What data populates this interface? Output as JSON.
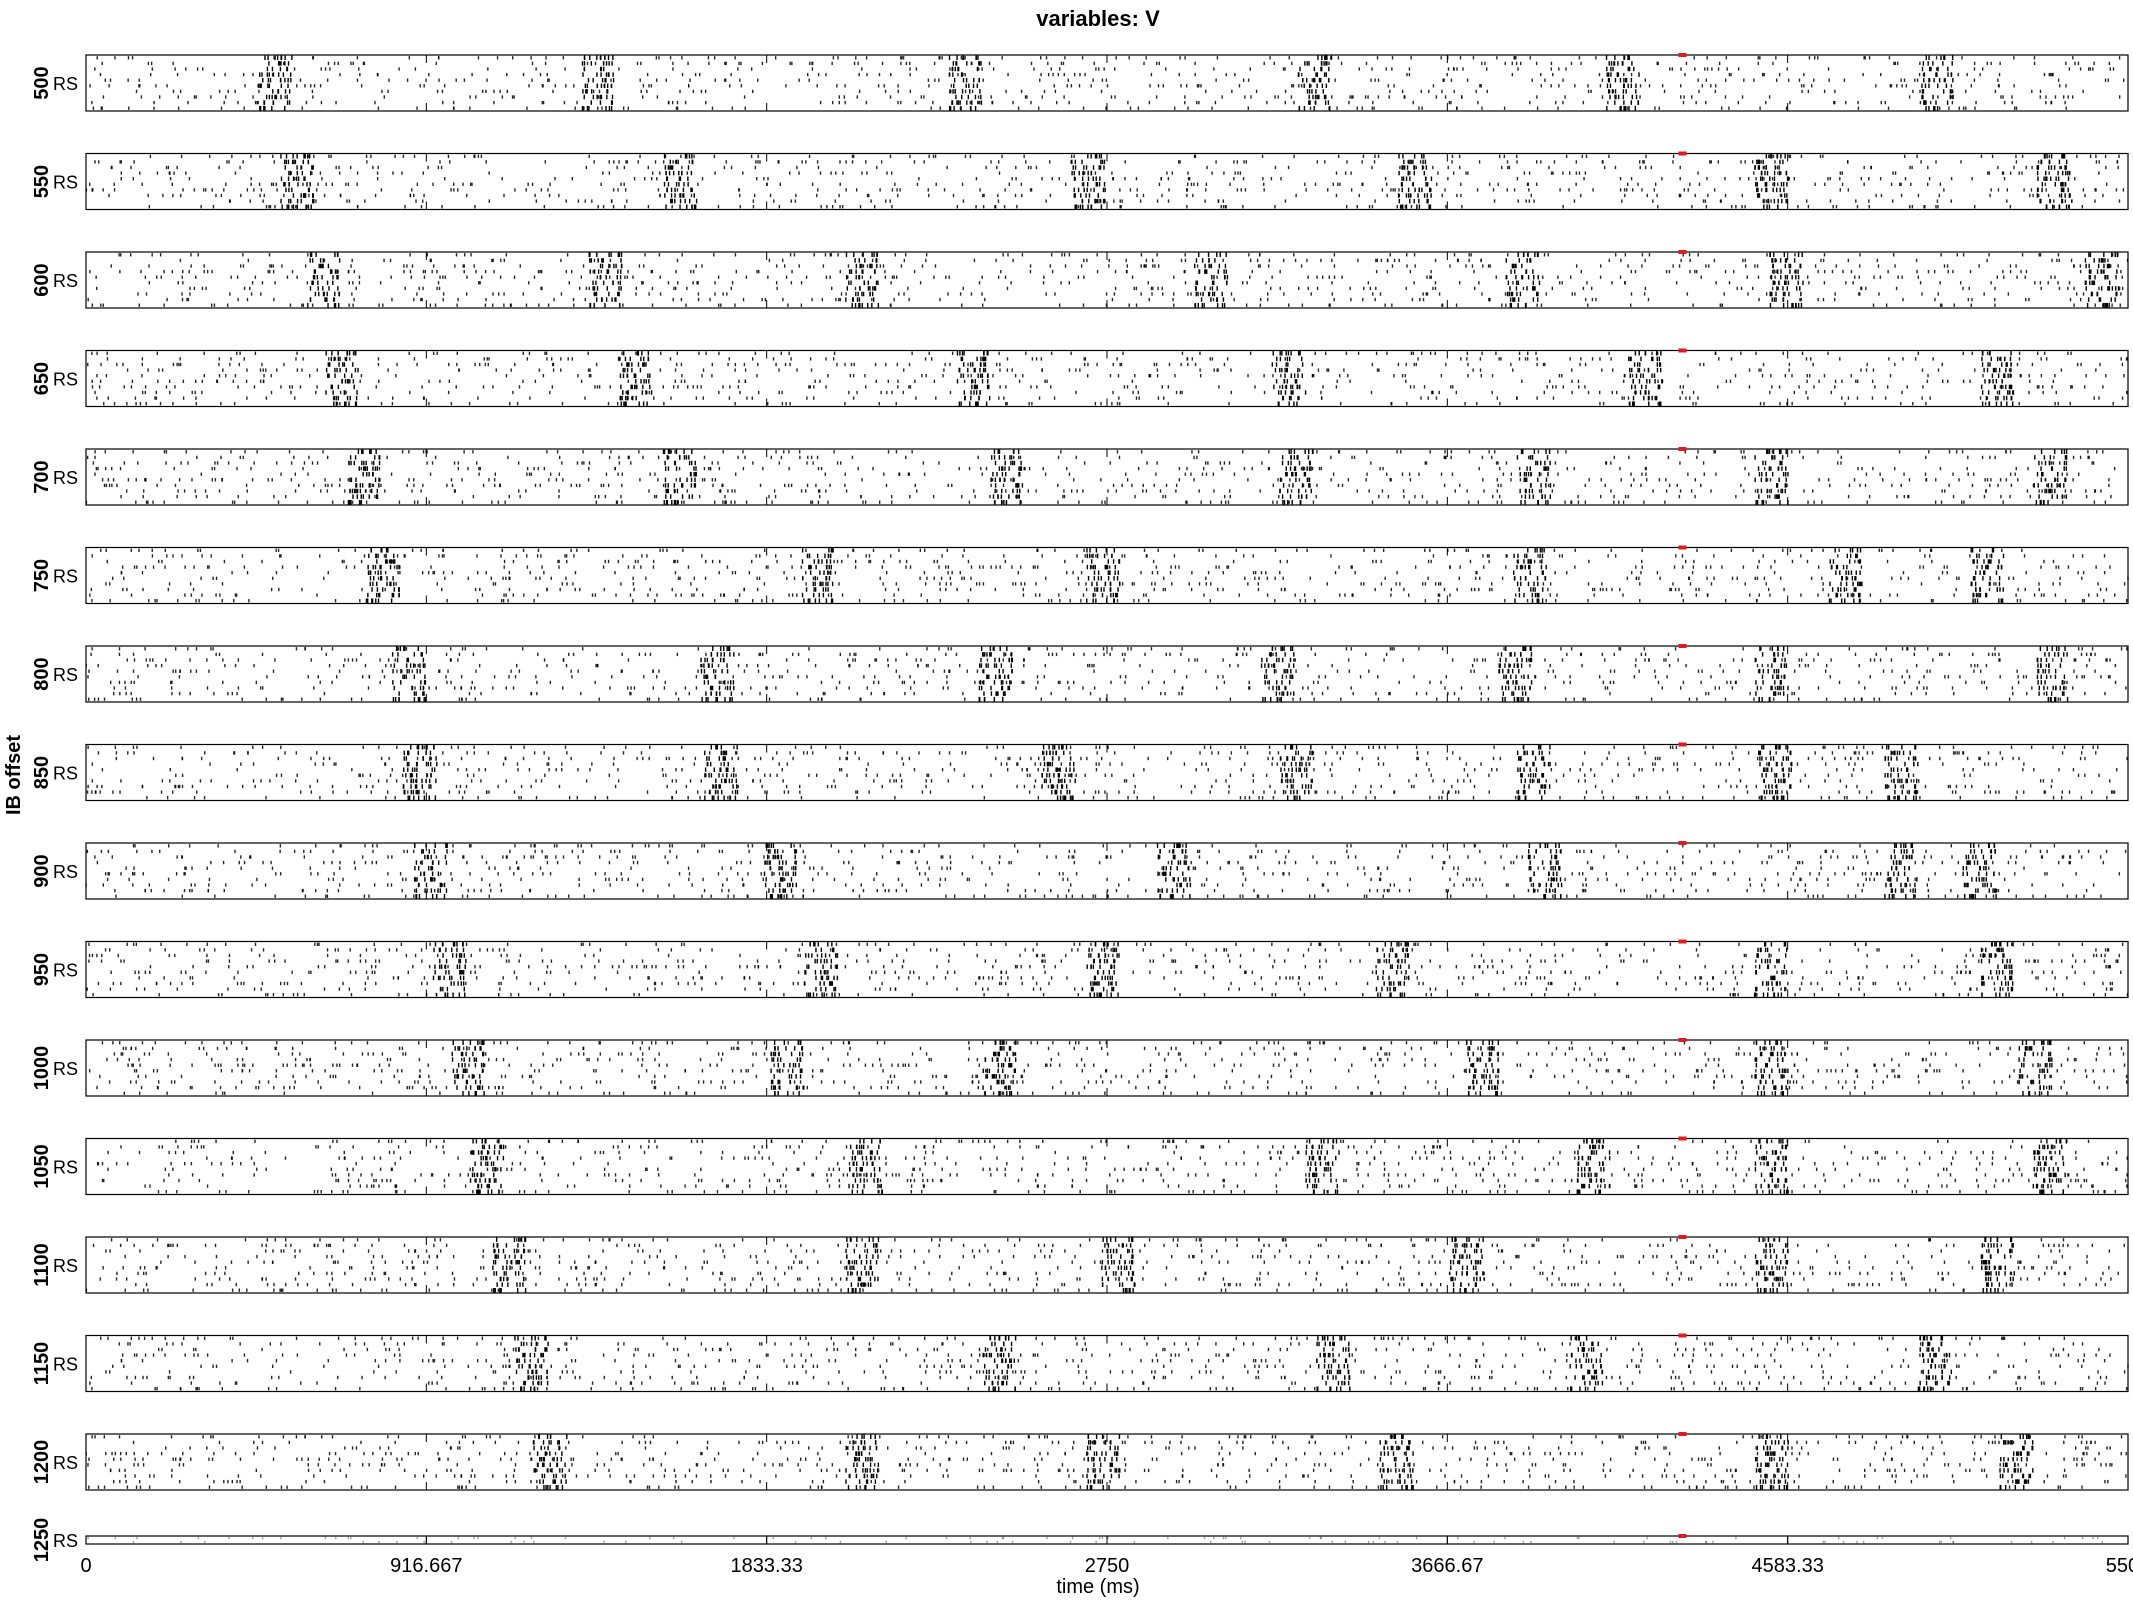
{
  "figure": {
    "title": "variables: V",
    "ylabel": "IB offset",
    "xlabel": "time (ms)"
  },
  "chart_data": {
    "type": "scatter",
    "subtype": "raster",
    "title": "variables: V",
    "xlabel": "time (ms)",
    "ylabel": "IB offset",
    "xlim": [
      0,
      5500
    ],
    "x_ticks": [
      0,
      916.667,
      1833.33,
      2750,
      3666.67,
      4583.33,
      5500
    ],
    "x_tick_labels": [
      "0",
      "916.667",
      "1833.33",
      "2750",
      "3666.67",
      "4583.33",
      "5500"
    ],
    "marker_time": 4300,
    "marker_color": "#e3191c",
    "spike_color": "#000000",
    "panels": [
      {
        "offset": "500",
        "population": "RS",
        "burst_times": [
          510,
          1380,
          2370,
          3310,
          4140,
          4990
        ]
      },
      {
        "offset": "550",
        "population": "RS",
        "burst_times": [
          570,
          1600,
          2700,
          3580,
          4540,
          5300
        ]
      },
      {
        "offset": "600",
        "population": "RS",
        "burst_times": [
          640,
          1400,
          2090,
          3030,
          3870,
          4580,
          5430
        ]
      },
      {
        "offset": "650",
        "population": "RS",
        "burst_times": [
          690,
          1480,
          2390,
          3240,
          4200,
          5150
        ]
      },
      {
        "offset": "700",
        "population": "RS",
        "burst_times": [
          750,
          1600,
          2480,
          3260,
          3900,
          4540,
          5290
        ]
      },
      {
        "offset": "750",
        "population": "RS",
        "burst_times": [
          800,
          1970,
          2740,
          3890,
          4740,
          5120
        ]
      },
      {
        "offset": "800",
        "population": "RS",
        "burst_times": [
          870,
          1700,
          2450,
          3210,
          3850,
          4540,
          5300
        ]
      },
      {
        "offset": "850",
        "population": "RS",
        "burst_times": [
          900,
          1710,
          2620,
          3260,
          3900,
          4550,
          4890
        ]
      },
      {
        "offset": "900",
        "population": "RS",
        "burst_times": [
          930,
          1870,
          2930,
          3930,
          4890,
          5100
        ]
      },
      {
        "offset": "950",
        "population": "RS",
        "burst_times": [
          980,
          1980,
          2740,
          3520,
          4540,
          5150
        ]
      },
      {
        "offset": "1000",
        "population": "RS",
        "burst_times": [
          1030,
          1890,
          2460,
          3760,
          4540,
          5250
        ]
      },
      {
        "offset": "1050",
        "population": "RS",
        "burst_times": [
          1080,
          2100,
          3330,
          4060,
          4540,
          5290
        ]
      },
      {
        "offset": "1100",
        "population": "RS",
        "burst_times": [
          1140,
          2090,
          2780,
          3720,
          4540,
          5150
        ]
      },
      {
        "offset": "1150",
        "population": "RS",
        "burst_times": [
          1200,
          2460,
          3360,
          4040,
          4980
        ]
      },
      {
        "offset": "1200",
        "population": "RS",
        "burst_times": [
          1250,
          2090,
          2740,
          3530,
          4540,
          5200
        ]
      },
      {
        "offset": "1250",
        "population": "RS",
        "burst_times": []
      }
    ]
  }
}
